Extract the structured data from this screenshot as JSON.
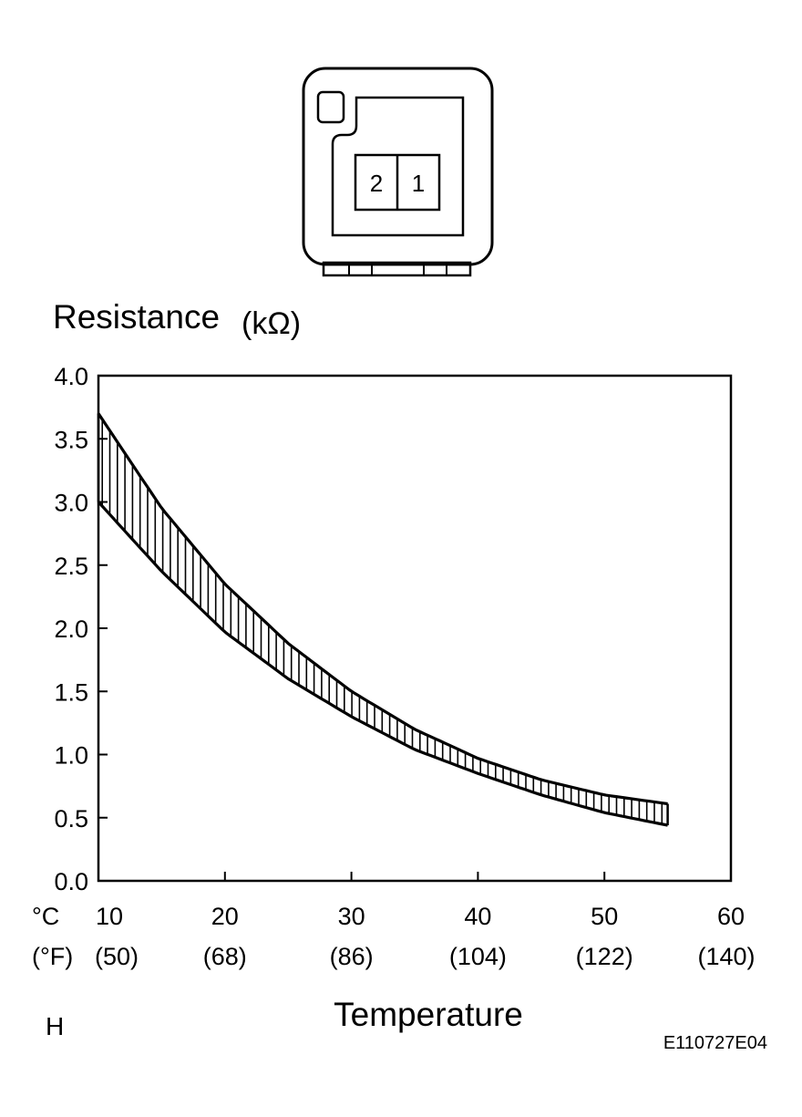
{
  "connector": {
    "pins": [
      "2",
      "1"
    ]
  },
  "chart_data": {
    "type": "area",
    "title": "",
    "ylabel": "Resistance",
    "ylabel_unit": "(kΩ)",
    "xlabel": "Temperature",
    "x_unit_c": "°C",
    "x_unit_f": "(°F)",
    "ylim": [
      0.0,
      4.0
    ],
    "xlim": [
      10,
      60
    ],
    "yticks": [
      "4.0",
      "3.5",
      "3.0",
      "2.5",
      "2.0",
      "1.5",
      "1.0",
      "0.5",
      "0.0"
    ],
    "xticks_c": [
      "10",
      "20",
      "30",
      "40",
      "50",
      "60"
    ],
    "xticks_f": [
      "(50)",
      "(68)",
      "(86)",
      "(104)",
      "(122)",
      "(140)"
    ],
    "grid": false,
    "fill": "vertical-hatch",
    "series": [
      {
        "x": [
          10,
          15,
          20,
          25,
          30,
          35,
          40,
          45,
          50,
          55
        ],
        "values": [
          3.7,
          2.95,
          2.35,
          1.88,
          1.5,
          1.2,
          0.97,
          0.8,
          0.68,
          0.61
        ]
      },
      {
        "x": [
          10,
          15,
          20,
          25,
          30,
          35,
          40,
          45,
          50,
          55
        ],
        "values": [
          3.0,
          2.45,
          1.97,
          1.6,
          1.3,
          1.04,
          0.85,
          0.68,
          0.54,
          0.44
        ]
      }
    ]
  },
  "footer": {
    "left_label": "H",
    "code": "E110727E04"
  }
}
